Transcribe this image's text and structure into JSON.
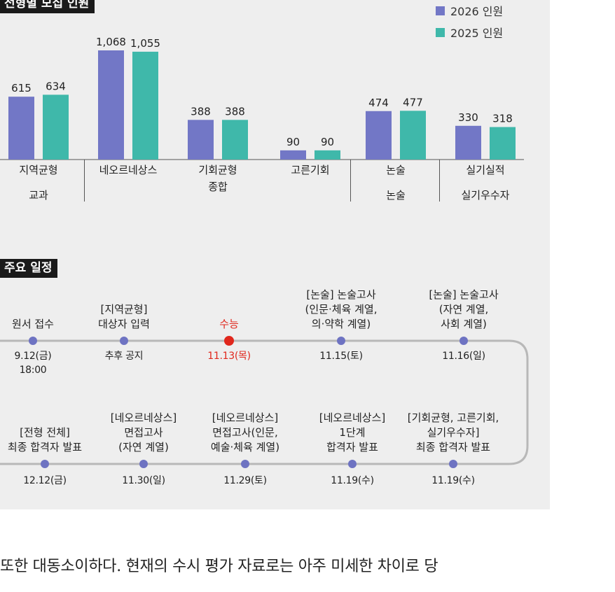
{
  "colors": {
    "series_2026": "#7277c6",
    "series_2025": "#3fb8aa",
    "highlight": "#e0271c",
    "dot": "#6e73c2",
    "track": "#b8b8b8"
  },
  "sections": {
    "chart_title": "전형별 모집 인원",
    "schedule_title": "주요 일정"
  },
  "chart_data": {
    "type": "bar",
    "categories": [
      "지역균형",
      "네오르네상스",
      "기회균형",
      "고른기회",
      "논술",
      "실기실적"
    ],
    "group_labels": [
      {
        "label": "교과",
        "spans": [
          "지역균형"
        ]
      },
      {
        "label": "종합",
        "spans": [
          "네오르네상스",
          "기회균형",
          "고른기회"
        ]
      },
      {
        "label": "논술",
        "spans": [
          "논술"
        ]
      },
      {
        "label": "실기우수자",
        "spans": [
          "실기실적"
        ]
      }
    ],
    "series": [
      {
        "name": "2026 인원",
        "values": [
          615,
          1068,
          388,
          90,
          474,
          330
        ]
      },
      {
        "name": "2025 인원",
        "values": [
          634,
          1055,
          388,
          90,
          477,
          318
        ]
      }
    ],
    "value_labels": [
      [
        "615",
        "1,068",
        "388",
        "90",
        "474",
        "330"
      ],
      [
        "634",
        "1,055",
        "388",
        "90",
        "477",
        "318"
      ]
    ],
    "ylim": [
      0,
      1100
    ],
    "grid": false,
    "legend": "top-right"
  },
  "schedule": {
    "top_row": [
      {
        "title": "원서 접수",
        "date": "9.12(금)\n18:00",
        "highlight": false
      },
      {
        "title": "[지역균형]\n대상자 입력",
        "date": "추후 공지",
        "highlight": false
      },
      {
        "title": "수능",
        "date": "11.13(목)",
        "highlight": true
      },
      {
        "title": "[논술] 논술고사\n(인문·체육 계열,\n의·약학 계열)",
        "date": "11.15(토)",
        "highlight": false
      },
      {
        "title": "[논술] 논술고사\n(자연 계열,\n사회 계열)",
        "date": "11.16(일)",
        "highlight": false
      }
    ],
    "bottom_row": [
      {
        "title": "[전형 전체]\n최종 합격자 발표",
        "date": "12.12(금)"
      },
      {
        "title": "[네오르네상스]\n면접고사\n(자연 계열)",
        "date": "11.30(일)"
      },
      {
        "title": "[네오르네상스]\n면접고사(인문,\n예술·체육 계열)",
        "date": "11.29(토)"
      },
      {
        "title": "[네오르네상스]\n1단계\n합격자 발표",
        "date": "11.19(수)"
      },
      {
        "title": "[기회균형, 고른기회,\n실기우수자]\n최종 합격자 발표",
        "date": "11.19(수)"
      }
    ]
  },
  "footer_text": "또한 대동소이하다. 현재의 수시 평가 자료로는 아주 미세한 차이로 당"
}
